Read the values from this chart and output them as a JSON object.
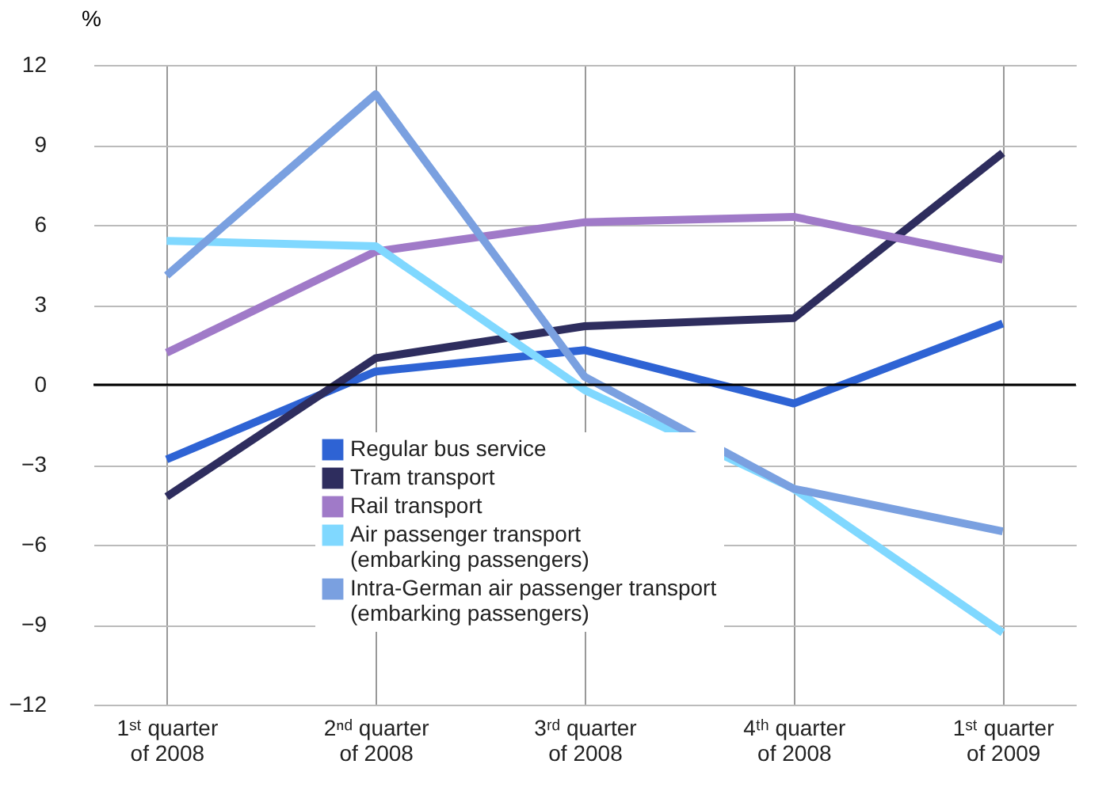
{
  "chart_data": {
    "type": "line",
    "ylabel": "%",
    "categories": [
      "1ˢᵗ quarter\nof 2008",
      "2ⁿᵈ quarter\nof 2008",
      "3ʳᵈ quarter\nof 2008",
      "4ᵗʰ quarter\nof 2008",
      "1ˢᵗ quarter\nof 2009"
    ],
    "series": [
      {
        "name": "Regular bus service",
        "color": "#2e63d4",
        "values": [
          -2.8,
          0.5,
          1.3,
          -0.7,
          2.3
        ]
      },
      {
        "name": "Tram transport",
        "color": "#2e2d5e",
        "values": [
          -4.2,
          1.0,
          2.2,
          2.5,
          8.7
        ]
      },
      {
        "name": "Rail transport",
        "color": "#a07ac8",
        "values": [
          1.2,
          5.0,
          6.1,
          6.3,
          4.7
        ]
      },
      {
        "name": "Air passenger transport\n(embarking passengers)",
        "color": "#80d8ff",
        "values": [
          5.4,
          5.2,
          -0.2,
          -3.9,
          -9.3
        ]
      },
      {
        "name": "Intra-German air passenger transport\n(embarking passengers)",
        "color": "#7aa0e0",
        "values": [
          4.1,
          10.9,
          0.3,
          -3.9,
          -5.5
        ]
      }
    ],
    "ylim": [
      -12,
      12
    ],
    "yticks": [
      -12,
      -9,
      -6,
      -3,
      0,
      3,
      6,
      9,
      12
    ],
    "grid": true,
    "legend": "bottom",
    "marker": "none",
    "line_style": "solid",
    "ref_lines": [
      {
        "axis": "y",
        "value": 0,
        "color": "#000000"
      }
    ]
  }
}
